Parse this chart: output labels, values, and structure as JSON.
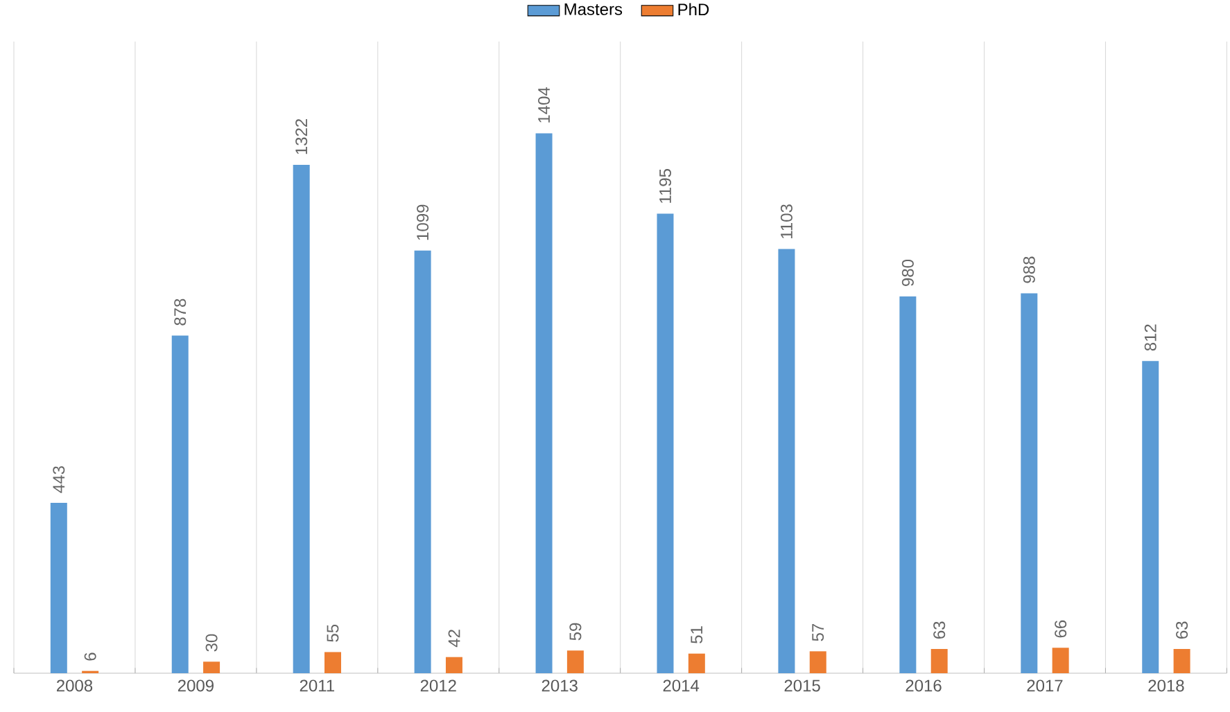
{
  "chart_data": {
    "type": "bar",
    "categories": [
      "2008",
      "2009",
      "2011",
      "2012",
      "2013",
      "2014",
      "2015",
      "2016",
      "2017",
      "2018"
    ],
    "series": [
      {
        "name": "Masters",
        "color": "#5b9bd5",
        "values": [
          443,
          878,
          1322,
          1099,
          1404,
          1195,
          1103,
          980,
          988,
          812
        ]
      },
      {
        "name": "PhD",
        "color": "#ed7d31",
        "values": [
          6,
          30,
          55,
          42,
          59,
          51,
          57,
          63,
          66,
          63
        ]
      }
    ],
    "data_labels": true,
    "grid": "x",
    "legend": "top",
    "tick_labels": "x"
  }
}
